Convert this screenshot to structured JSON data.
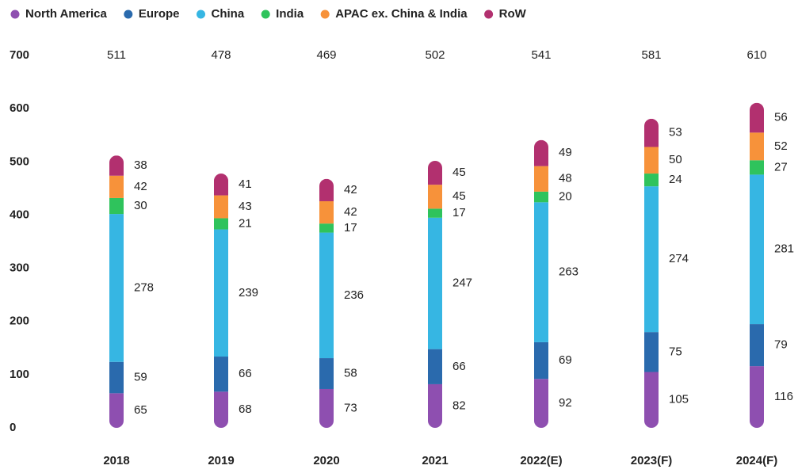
{
  "chart_data": {
    "type": "stacked_bar",
    "categories": [
      "2018",
      "2019",
      "2020",
      "2021",
      "2022(E)",
      "2023(F)",
      "2024(F)"
    ],
    "totals": [
      511,
      478,
      469,
      502,
      541,
      581,
      610
    ],
    "series": [
      {
        "name": "North America",
        "color": "#8e4fb0",
        "values": [
          65,
          68,
          73,
          82,
          92,
          105,
          116
        ]
      },
      {
        "name": "Europe",
        "color": "#2a6aad",
        "values": [
          59,
          66,
          58,
          66,
          69,
          75,
          79
        ]
      },
      {
        "name": "China",
        "color": "#36b6e3",
        "values": [
          278,
          239,
          236,
          247,
          263,
          274,
          281
        ]
      },
      {
        "name": "India",
        "color": "#2fc35c",
        "values": [
          30,
          21,
          17,
          17,
          20,
          24,
          27
        ]
      },
      {
        "name": "APAC ex. China & India",
        "color": "#f7923a",
        "values": [
          42,
          43,
          42,
          45,
          48,
          50,
          52
        ]
      },
      {
        "name": "RoW",
        "color": "#b2306f",
        "values": [
          38,
          41,
          42,
          45,
          49,
          53,
          56
        ]
      }
    ],
    "ylim": [
      0,
      700
    ],
    "yticks": [
      0,
      100,
      200,
      300,
      400,
      500,
      600,
      700
    ]
  }
}
